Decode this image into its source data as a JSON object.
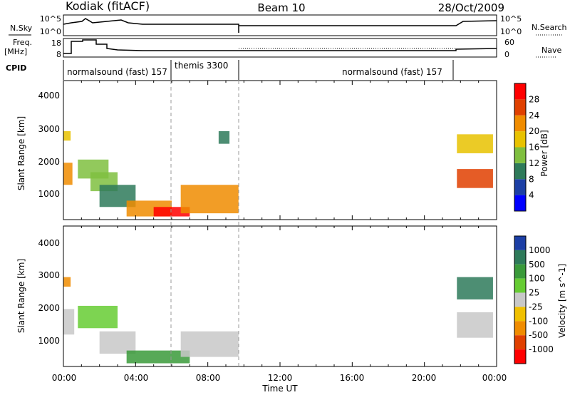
{
  "header": {
    "station": "Kodiak (fitACF)",
    "beam": "Beam 10",
    "date": "28/Oct/2009"
  },
  "strips": {
    "nsky_label": "N.Sky",
    "nsearch_label": "N.Search",
    "nsky_ticks": [
      "10^5",
      "10^0"
    ],
    "nsearch_ticks": [
      "10^5",
      "10^0"
    ],
    "freq_label_1": "Freq.",
    "freq_label_2": "[MHz]",
    "freq_ticks": [
      "18",
      "8"
    ],
    "nave_label": "Nave",
    "nave_ticks": [
      "60",
      "0"
    ],
    "cpid_label": "CPID",
    "cpid_segments": [
      {
        "label": "normalsound (fast) 157",
        "start_hour": 0.0,
        "end_hour": 6.0
      },
      {
        "label": "themis 3300",
        "start_hour": 6.0,
        "end_hour": 9.75
      },
      {
        "label": "normalsound (fast) 157",
        "start_hour": 9.75,
        "end_hour": 21.8
      }
    ]
  },
  "time_axis": {
    "title": "Time UT",
    "tick_labels": [
      "00:00",
      "04:00",
      "08:00",
      "12:00",
      "16:00",
      "20:00",
      "00:00"
    ],
    "range_hours": [
      0,
      24
    ]
  },
  "panels": {
    "power": {
      "ylabel": "Slant Range [km]",
      "yticks": [
        "4000",
        "3000",
        "2000",
        "1000"
      ],
      "colorbar_label": "Power [dB]",
      "colorbar_ticks": [
        "28",
        "24",
        "20",
        "16",
        "12",
        "8",
        "4"
      ],
      "colors": [
        "#0000ff",
        "#1c3fa5",
        "#2e7a5a",
        "#7fbf3f",
        "#e8c200",
        "#f08c00",
        "#e04000",
        "#ff0000"
      ]
    },
    "velocity": {
      "ylabel": "Slant Range [km]",
      "yticks": [
        "4000",
        "3000",
        "2000",
        "1000"
      ],
      "colorbar_label": "Velocity [m s^-1]",
      "colorbar_ticks": [
        "1000",
        "500",
        "100",
        "25",
        "-25",
        "-100",
        "-500",
        "-1000"
      ],
      "colors": [
        "#1c3fa5",
        "#2e7a5a",
        "#3a9a3a",
        "#66cc33",
        "#c8c8c8",
        "#f0c000",
        "#f08c00",
        "#e04000",
        "#ff0000"
      ]
    }
  },
  "chart_data": {
    "type": "heatmap",
    "title": "Kodiak (fitACF)",
    "xlabel": "Time UT",
    "ylabel": "Slant Range [km]",
    "xlim_hours": [
      0,
      24
    ],
    "ylim_km": [
      200,
      4600
    ],
    "series": [
      {
        "name": "Power [dB]",
        "regions": [
          {
            "t0": 0.0,
            "t1": 0.4,
            "r0": 2700,
            "r1": 3000,
            "value": 18
          },
          {
            "t0": 0.0,
            "t1": 0.5,
            "r0": 1300,
            "r1": 2000,
            "value": 22
          },
          {
            "t0": 0.8,
            "t1": 2.5,
            "r0": 1500,
            "r1": 2100,
            "value": 14
          },
          {
            "t0": 1.5,
            "t1": 3.0,
            "r0": 1100,
            "r1": 1700,
            "value": 12
          },
          {
            "t0": 2.0,
            "t1": 4.0,
            "r0": 600,
            "r1": 1300,
            "value": 8
          },
          {
            "t0": 3.5,
            "t1": 6.0,
            "r0": 300,
            "r1": 800,
            "value": 20
          },
          {
            "t0": 5.0,
            "t1": 7.0,
            "r0": 300,
            "r1": 600,
            "value": 28
          },
          {
            "t0": 6.5,
            "t1": 9.7,
            "r0": 400,
            "r1": 1300,
            "value": 22
          },
          {
            "t0": 8.6,
            "t1": 9.2,
            "r0": 2600,
            "r1": 3000,
            "value": 10
          },
          {
            "t0": 21.8,
            "t1": 23.8,
            "r0": 1200,
            "r1": 1800,
            "value": 26
          },
          {
            "t0": 21.8,
            "t1": 23.8,
            "r0": 2300,
            "r1": 2900,
            "value": 18
          }
        ]
      },
      {
        "name": "Velocity [m s^-1]",
        "regions": [
          {
            "t0": 0.0,
            "t1": 0.4,
            "r0": 2700,
            "r1": 3000,
            "value": -200
          },
          {
            "t0": 0.0,
            "t1": 0.6,
            "r0": 1200,
            "r1": 2000,
            "value": 0
          },
          {
            "t0": 0.8,
            "t1": 3.0,
            "r0": 1400,
            "r1": 2100,
            "value": 80
          },
          {
            "t0": 2.0,
            "t1": 4.0,
            "r0": 600,
            "r1": 1300,
            "value": 0
          },
          {
            "t0": 3.5,
            "t1": 7.0,
            "r0": 300,
            "r1": 700,
            "value": 100
          },
          {
            "t0": 6.5,
            "t1": 9.7,
            "r0": 500,
            "r1": 1300,
            "value": 0
          },
          {
            "t0": 21.8,
            "t1": 23.8,
            "r0": 1100,
            "r1": 1900,
            "value": 0
          },
          {
            "t0": 21.8,
            "t1": 23.8,
            "r0": 2300,
            "r1": 3000,
            "value": 500
          }
        ]
      }
    ]
  }
}
